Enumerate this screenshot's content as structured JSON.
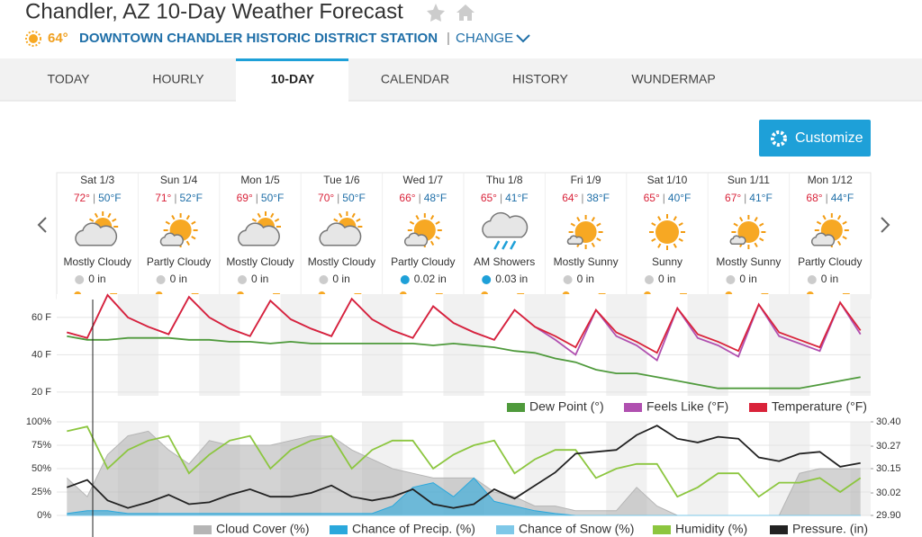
{
  "header": {
    "title": "Chandler, AZ 10-Day Weather Forecast",
    "current_temp": "64°",
    "station": "DOWNTOWN CHANDLER HISTORIC DISTRICT STATION",
    "change": "CHANGE"
  },
  "separator": "|",
  "tabs": [
    {
      "label": "TODAY"
    },
    {
      "label": "HOURLY"
    },
    {
      "label": "10-DAY",
      "active": true
    },
    {
      "label": "CALENDAR"
    },
    {
      "label": "HISTORY"
    },
    {
      "label": "WUNDERMAP"
    }
  ],
  "customize": "Customize",
  "days": [
    {
      "day": "Sat 1/3",
      "high": "72°",
      "low": "50°F",
      "condition": "Mostly Cloudy",
      "precip": "0 in"
    },
    {
      "day": "Sun 1/4",
      "high": "71°",
      "low": "52°F",
      "condition": "Partly Cloudy",
      "precip": "0 in"
    },
    {
      "day": "Mon 1/5",
      "high": "69°",
      "low": "50°F",
      "condition": "Mostly Cloudy",
      "precip": "0 in"
    },
    {
      "day": "Tue 1/6",
      "high": "70°",
      "low": "50°F",
      "condition": "Mostly Cloudy",
      "precip": "0 in"
    },
    {
      "day": "Wed 1/7",
      "high": "66°",
      "low": "48°F",
      "condition": "Partly Cloudy",
      "precip": "0.02 in"
    },
    {
      "day": "Thu 1/8",
      "high": "65°",
      "low": "41°F",
      "condition": "AM Showers",
      "precip": "0.03 in"
    },
    {
      "day": "Fri 1/9",
      "high": "64°",
      "low": "38°F",
      "condition": "Mostly Sunny",
      "precip": "0 in"
    },
    {
      "day": "Sat 1/10",
      "high": "65°",
      "low": "40°F",
      "condition": "Sunny",
      "precip": "0 in"
    },
    {
      "day": "Sun 1/11",
      "high": "67°",
      "low": "41°F",
      "condition": "Mostly Sunny",
      "precip": "0 in"
    },
    {
      "day": "Mon 1/12",
      "high": "68°",
      "low": "44°F",
      "condition": "Partly Cloudy",
      "precip": "0 in"
    }
  ],
  "chart_data": [
    {
      "type": "line",
      "xlim": [
        0,
        240
      ],
      "x": [
        3,
        9,
        15,
        21,
        27,
        33,
        39,
        45,
        51,
        57,
        63,
        69,
        75,
        81,
        87,
        93,
        99,
        105,
        111,
        117,
        123,
        129,
        135,
        141,
        147,
        153,
        159,
        165,
        171,
        177,
        183,
        189,
        195,
        201,
        207,
        213,
        219,
        225,
        231,
        237
      ],
      "ylim": [
        18,
        72.5
      ],
      "yticks": [
        {
          "value": 20,
          "label": "20 F"
        },
        {
          "value": 40,
          "label": "40 F"
        },
        {
          "value": 60,
          "label": "60 F"
        }
      ],
      "series": [
        {
          "name": "Dew Point (°)",
          "color": "#4f9a3c",
          "values": [
            50,
            48,
            48,
            49,
            49,
            49,
            48,
            48,
            47,
            47,
            46,
            47,
            46,
            46,
            46,
            46,
            46,
            46,
            45,
            46,
            45,
            44,
            42,
            41,
            38,
            36,
            32,
            30,
            30,
            28,
            26,
            24,
            22,
            22,
            22,
            22,
            22,
            24,
            26,
            28
          ]
        },
        {
          "name": "Feels Like (°F)",
          "color": "#b050b0",
          "values": [
            52,
            49,
            72,
            60,
            55,
            51,
            71,
            60,
            54,
            50,
            69,
            59,
            54,
            50,
            70,
            59,
            53,
            49,
            66,
            57,
            52,
            48,
            64,
            55,
            48,
            40,
            64,
            50,
            45,
            37,
            65,
            49,
            45,
            39,
            67,
            50,
            46,
            42,
            68,
            51
          ]
        },
        {
          "name": "Temperature (°F)",
          "color": "#d9233a",
          "values": [
            52,
            49,
            72,
            60,
            55,
            51,
            71,
            60,
            54,
            50,
            69,
            59,
            54,
            50,
            70,
            59,
            53,
            49,
            66,
            57,
            52,
            48,
            64,
            55,
            50,
            44,
            64,
            52,
            47,
            41,
            65,
            51,
            47,
            42,
            67,
            52,
            48,
            44,
            68,
            53
          ]
        }
      ]
    },
    {
      "type": "line",
      "xlim": [
        0,
        240
      ],
      "x": [
        3,
        9,
        15,
        21,
        27,
        33,
        39,
        45,
        51,
        57,
        63,
        69,
        75,
        81,
        87,
        93,
        99,
        105,
        111,
        117,
        123,
        129,
        135,
        141,
        147,
        153,
        159,
        165,
        171,
        177,
        183,
        189,
        195,
        201,
        207,
        213,
        219,
        225,
        231,
        237
      ],
      "ylim": [
        0,
        100
      ],
      "yticks": [
        {
          "value": 0,
          "label": "0%"
        },
        {
          "value": 25,
          "label": "25%"
        },
        {
          "value": 50,
          "label": "50%"
        },
        {
          "value": 75,
          "label": "75%"
        },
        {
          "value": 100,
          "label": "100%"
        }
      ],
      "y2lim": [
        29.9,
        30.4
      ],
      "y2ticks": [
        {
          "value": 29.9,
          "label": "29.90"
        },
        {
          "value": 30.02,
          "label": "30.02"
        },
        {
          "value": 30.15,
          "label": "30.15"
        },
        {
          "value": 30.27,
          "label": "30.27"
        },
        {
          "value": 30.4,
          "label": "30.40"
        }
      ],
      "series": [
        {
          "name": "Cloud Cover (%)",
          "color": "#b5b5b5",
          "style": "area",
          "values": [
            40,
            20,
            65,
            85,
            90,
            70,
            55,
            80,
            75,
            75,
            75,
            80,
            85,
            85,
            70,
            60,
            50,
            45,
            40,
            40,
            40,
            25,
            20,
            10,
            10,
            5,
            5,
            5,
            30,
            10,
            0,
            0,
            0,
            0,
            0,
            0,
            45,
            50,
            50,
            50
          ]
        },
        {
          "name": "Chance of Precip. (%)",
          "color": "#2aa8dc",
          "style": "area",
          "values": [
            2,
            5,
            5,
            2,
            2,
            2,
            2,
            2,
            2,
            2,
            2,
            2,
            2,
            2,
            2,
            2,
            10,
            30,
            35,
            20,
            40,
            15,
            10,
            5,
            2,
            0,
            0,
            0,
            0,
            0,
            0,
            0,
            0,
            0,
            0,
            0,
            0,
            0,
            0,
            0
          ]
        },
        {
          "name": "Chance of Snow (%)",
          "color": "#7ec8e8",
          "style": "area",
          "values": [
            0,
            0,
            0,
            0,
            0,
            0,
            0,
            0,
            0,
            0,
            0,
            0,
            0,
            0,
            0,
            0,
            0,
            0,
            0,
            0,
            0,
            0,
            0,
            0,
            0,
            0,
            0,
            0,
            0,
            0,
            0,
            0,
            0,
            0,
            0,
            0,
            0,
            0,
            0,
            0
          ]
        },
        {
          "name": "Humidity (%)",
          "color": "#8cc63f",
          "style": "line",
          "values": [
            90,
            95,
            50,
            70,
            80,
            85,
            45,
            65,
            80,
            85,
            50,
            70,
            80,
            85,
            50,
            70,
            80,
            80,
            50,
            65,
            75,
            80,
            45,
            60,
            70,
            70,
            40,
            50,
            55,
            55,
            20,
            30,
            45,
            45,
            20,
            35,
            35,
            40,
            25,
            40
          ]
        },
        {
          "name": "Pressure. (in)",
          "color": "#222222",
          "style": "line",
          "axis": "y2",
          "values": [
            30.05,
            30.09,
            29.98,
            29.94,
            29.97,
            30.01,
            29.96,
            29.97,
            30.01,
            30.04,
            30.0,
            30.0,
            30.02,
            30.06,
            30.0,
            29.98,
            30.0,
            30.04,
            29.96,
            29.94,
            29.96,
            30.04,
            29.99,
            30.06,
            30.13,
            30.23,
            30.24,
            30.25,
            30.33,
            30.38,
            30.31,
            30.29,
            30.32,
            30.31,
            30.21,
            30.19,
            30.23,
            30.24,
            30.16,
            30.18
          ]
        }
      ]
    }
  ]
}
